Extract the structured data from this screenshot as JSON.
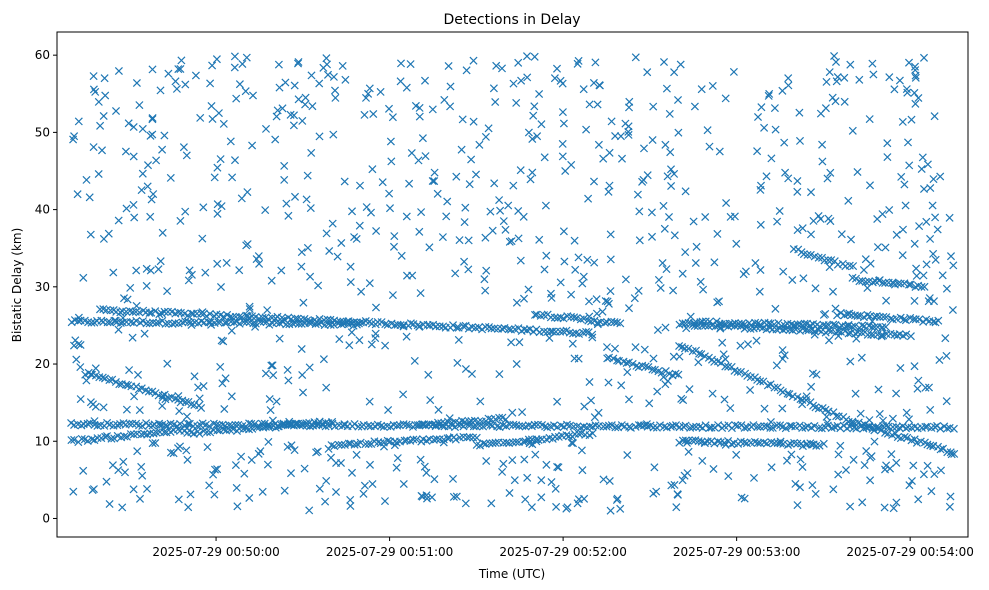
{
  "chart_data": {
    "type": "scatter",
    "title": "Detections in Delay",
    "xlabel": "Time (UTC)",
    "ylabel": "Bistatic Delay (km)",
    "x_ticks": [
      "2025-07-29 00:50:00",
      "2025-07-29 00:51:00",
      "2025-07-29 00:52:00",
      "2025-07-29 00:53:00",
      "2025-07-29 00:54:00"
    ],
    "y_ticks": [
      "0",
      "10",
      "20",
      "30",
      "40",
      "50",
      "60"
    ],
    "x_range": [
      "2025-07-29 00:49:05",
      "2025-07-29 00:54:20"
    ],
    "ylim": [
      -2.4,
      63
    ],
    "grid": false,
    "marker": "x",
    "color": "#1f77b4",
    "tracks": [
      {
        "start": [
          "2025-07-29 00:49:10",
          25.5
        ],
        "end": [
          "2025-07-29 00:50:50",
          25.2
        ]
      },
      {
        "start": [
          "2025-07-29 00:49:20",
          27.0
        ],
        "end": [
          "2025-07-29 00:52:10",
          24.0
        ]
      },
      {
        "start": [
          "2025-07-29 00:51:50",
          26.5
        ],
        "end": [
          "2025-07-29 00:52:20",
          25.2
        ]
      },
      {
        "start": [
          "2025-07-29 00:52:45",
          25.4
        ],
        "end": [
          "2025-07-29 00:53:50",
          24.8
        ]
      },
      {
        "start": [
          "2025-07-29 00:52:40",
          25.2
        ],
        "end": [
          "2025-07-29 00:54:00",
          23.7
        ]
      },
      {
        "start": [
          "2025-07-29 00:53:35",
          26.5
        ],
        "end": [
          "2025-07-29 00:54:10",
          25.5
        ]
      },
      {
        "start": [
          "2025-07-29 00:53:20",
          34.8
        ],
        "end": [
          "2025-07-29 00:53:40",
          32.5
        ]
      },
      {
        "start": [
          "2025-07-29 00:53:40",
          31.0
        ],
        "end": [
          "2025-07-29 00:54:05",
          30.0
        ]
      },
      {
        "start": [
          "2025-07-29 00:49:15",
          18.8
        ],
        "end": [
          "2025-07-29 00:49:55",
          14.5
        ]
      },
      {
        "start": [
          "2025-07-29 00:52:15",
          20.8
        ],
        "end": [
          "2025-07-29 00:52:40",
          18.5
        ]
      },
      {
        "start": [
          "2025-07-29 00:52:40",
          22.5
        ],
        "end": [
          "2025-07-29 00:53:40",
          12.5
        ]
      },
      {
        "start": [
          "2025-07-29 00:49:10",
          12.2
        ],
        "end": [
          "2025-07-29 00:54:15",
          11.8
        ]
      },
      {
        "start": [
          "2025-07-29 00:49:10",
          10.0
        ],
        "end": [
          "2025-07-29 00:49:50",
          11.5
        ]
      },
      {
        "start": [
          "2025-07-29 00:49:50",
          11.0
        ],
        "end": [
          "2025-07-29 00:50:40",
          12.5
        ]
      },
      {
        "start": [
          "2025-07-29 00:50:40",
          9.5
        ],
        "end": [
          "2025-07-29 00:51:30",
          10.5
        ]
      },
      {
        "start": [
          "2025-07-29 00:51:30",
          9.5
        ],
        "end": [
          "2025-07-29 00:52:10",
          11.0
        ]
      },
      {
        "start": [
          "2025-07-29 00:52:40",
          10.0
        ],
        "end": [
          "2025-07-29 00:53:30",
          9.5
        ]
      },
      {
        "start": [
          "2025-07-29 00:53:40",
          12.5
        ],
        "end": [
          "2025-07-29 00:54:15",
          8.5
        ]
      },
      {
        "start": [
          "2025-07-29 00:51:10",
          12.0
        ],
        "end": [
          "2025-07-29 00:51:40",
          13.0
        ]
      }
    ],
    "scatter_clusters": [
      {
        "x": [
          "2025-07-29 00:49:05",
          "2025-07-29 00:54:20"
        ],
        "y": [
          28,
          60
        ]
      },
      {
        "x": [
          "2025-07-29 00:49:05",
          "2025-07-29 00:54:20"
        ],
        "y": [
          1,
          10
        ]
      },
      {
        "x": [
          "2025-07-29 00:49:05",
          "2025-07-29 00:54:20"
        ],
        "y": [
          12,
          28
        ]
      }
    ]
  }
}
